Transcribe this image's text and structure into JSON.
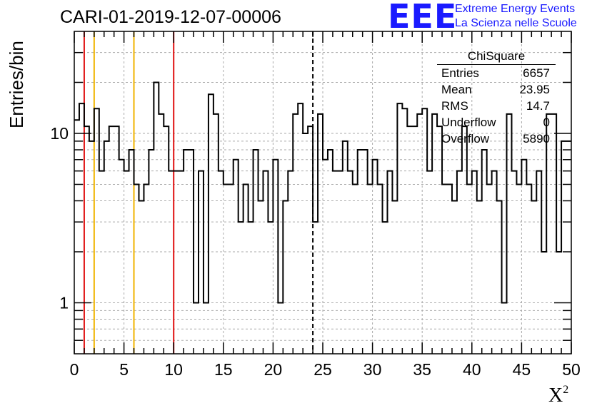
{
  "title": "CARI-01-2019-12-07-00006",
  "logo": {
    "mark": "EEE",
    "line1": "Extreme Energy Events",
    "line2": "La Scienza nelle Scuole"
  },
  "stats_box": {
    "name": "ChiSquare",
    "rows": [
      {
        "key": "Entries",
        "value": "6657"
      },
      {
        "key": "Mean",
        "value": "23.95"
      },
      {
        "key": "RMS",
        "value": "14.7"
      },
      {
        "key": "Underflow",
        "value": "0"
      },
      {
        "key": "Overflow",
        "value": "5890"
      }
    ]
  },
  "colors": {
    "red_line": "#e01010",
    "yellow_line": "#f0b400",
    "histogram": "#000000",
    "grid": "#aaaaaa"
  },
  "chart_data": {
    "type": "histogram",
    "xlabel": "X",
    "xlabel_sup": "2",
    "ylabel": "Entries/bin",
    "xlim": [
      0,
      50
    ],
    "ylim": [
      0.5,
      40
    ],
    "yscale": "log",
    "grid": true,
    "bin_width": 0.5,
    "x_ticks": [
      "0",
      "5",
      "10",
      "15",
      "20",
      "25",
      "30",
      "35",
      "40",
      "45",
      "50"
    ],
    "y_ticks": [
      "1",
      "10"
    ],
    "values": [
      12,
      15,
      11,
      9,
      14,
      6,
      9,
      11,
      11,
      7,
      6,
      8,
      5,
      4,
      5,
      8,
      20,
      13,
      11,
      6,
      6,
      6,
      8,
      8,
      1,
      6,
      1,
      17,
      13,
      6,
      5,
      5,
      7,
      3,
      5,
      3,
      8,
      4,
      6,
      3,
      7,
      1,
      4,
      6,
      13,
      15,
      10,
      11,
      3,
      13,
      7,
      8,
      6,
      6,
      9,
      6,
      5,
      8,
      8,
      5,
      7,
      5,
      3,
      6,
      4,
      15,
      14,
      11,
      11,
      13,
      14,
      6,
      13,
      11,
      5,
      5,
      4,
      6,
      11,
      5,
      6,
      4,
      8,
      5,
      6,
      4,
      1,
      13,
      6,
      5,
      7,
      5,
      4,
      6,
      2,
      13,
      13,
      2,
      9,
      9
    ],
    "vertical_lines": [
      {
        "x": 1,
        "style": "solid",
        "color": "red"
      },
      {
        "x": 2,
        "style": "solid",
        "color": "yellow"
      },
      {
        "x": 6,
        "style": "solid",
        "color": "yellow"
      },
      {
        "x": 10,
        "style": "solid",
        "color": "red"
      },
      {
        "x": 24,
        "style": "dashed",
        "color": "black"
      }
    ]
  }
}
